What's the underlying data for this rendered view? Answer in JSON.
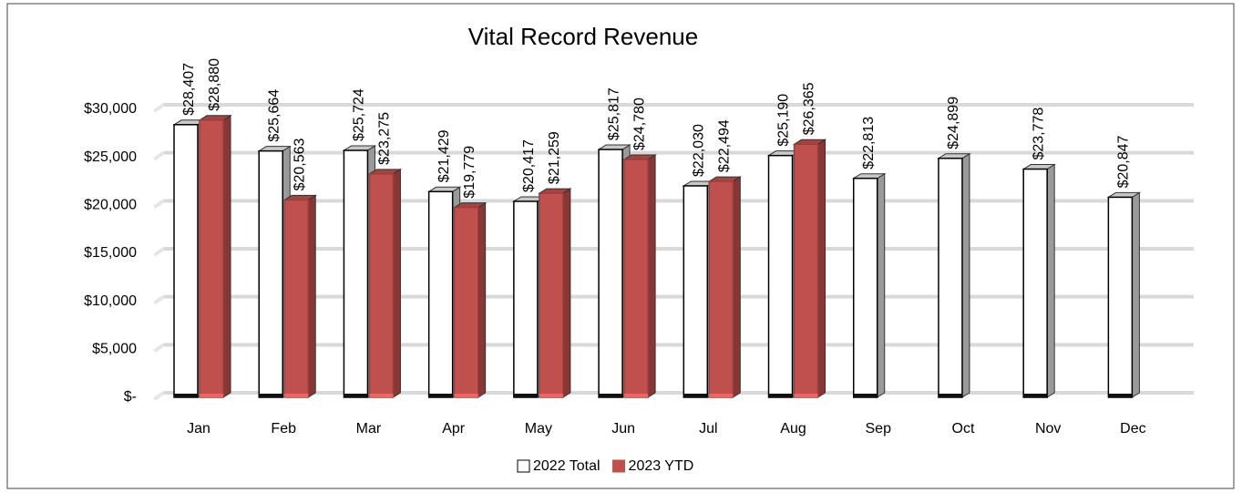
{
  "chart_data": {
    "type": "bar3d",
    "title": "Vital Record Revenue",
    "categories": [
      "Jan",
      "Feb",
      "Mar",
      "Apr",
      "May",
      "Jun",
      "Jul",
      "Aug",
      "Sep",
      "Oct",
      "Nov",
      "Dec"
    ],
    "series": [
      {
        "name": "2022 Total",
        "color": "#ffffff",
        "values": [
          28407,
          25664,
          25724,
          21429,
          20417,
          25817,
          22030,
          25190,
          22813,
          24899,
          23778,
          20847
        ],
        "value_labels": [
          "$28,407",
          "$25,664",
          "$25,724",
          "$21,429",
          "$20,417",
          "$25,817",
          "$22,030",
          "$25,190",
          "$22,813",
          "$24,899",
          "$23,778",
          "$20,847"
        ]
      },
      {
        "name": "2023 YTD",
        "color": "#c0504d",
        "values": [
          28880,
          20563,
          23275,
          19779,
          21259,
          24780,
          22494,
          26365,
          null,
          null,
          null,
          null
        ],
        "value_labels": [
          "$28,880",
          "$20,563",
          "$23,275",
          "$19,779",
          "$21,259",
          "$24,780",
          "$22,494",
          "$26,365",
          null,
          null,
          null,
          null
        ]
      }
    ],
    "ylim": [
      0,
      30000
    ],
    "yticks": [
      {
        "value": 0,
        "label": "$-"
      },
      {
        "value": 5000,
        "label": "$5,000"
      },
      {
        "value": 10000,
        "label": "$10,000"
      },
      {
        "value": 15000,
        "label": "$15,000"
      },
      {
        "value": 20000,
        "label": "$20,000"
      },
      {
        "value": 25000,
        "label": "$25,000"
      },
      {
        "value": 30000,
        "label": "$30,000"
      }
    ],
    "grid": true,
    "legend": "bottom"
  }
}
